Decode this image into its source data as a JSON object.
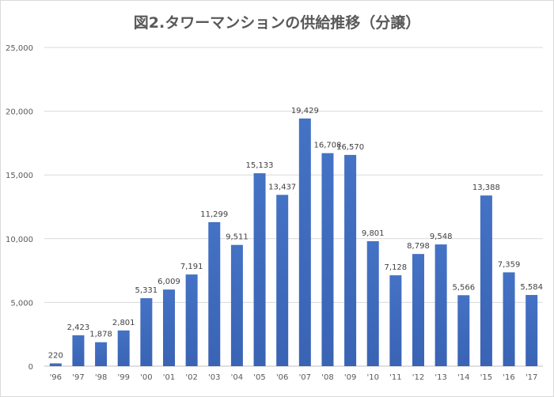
{
  "chart_data": {
    "type": "bar",
    "title": "図2.タワーマンションの供給推移（分譲）",
    "categories": [
      "'96",
      "'97",
      "'98",
      "'99",
      "'00",
      "'01",
      "'02",
      "'03",
      "'04",
      "'05",
      "'06",
      "'07",
      "'08",
      "'09",
      "'10",
      "'11",
      "'12",
      "'13",
      "'14",
      "'15",
      "'16",
      "'17"
    ],
    "values": [
      220,
      2423,
      1878,
      2801,
      5331,
      6009,
      7191,
      11299,
      9511,
      15133,
      13437,
      19429,
      16708,
      16570,
      9801,
      7128,
      8798,
      9548,
      5566,
      13388,
      7359,
      5584
    ],
    "value_labels": [
      "220",
      "2,423",
      "1,878",
      "2,801",
      "5,331",
      "6,009",
      "7,191",
      "11,299",
      "9,511",
      "15,133",
      "13,437",
      "19,429",
      "16,708",
      "16,570",
      "9,801",
      "7,128",
      "8,798",
      "9,548",
      "5,566",
      "13,388",
      "7,359",
      "5,584"
    ],
    "y_ticks": [
      0,
      5000,
      10000,
      15000,
      20000,
      25000
    ],
    "y_tick_labels": [
      "0",
      "5,000",
      "10,000",
      "15,000",
      "20,000",
      "25,000"
    ],
    "ylim": [
      0,
      25000
    ],
    "xlabel": "",
    "ylabel": "",
    "grid": true,
    "legend": "none",
    "bar_color": "#4472c4"
  }
}
